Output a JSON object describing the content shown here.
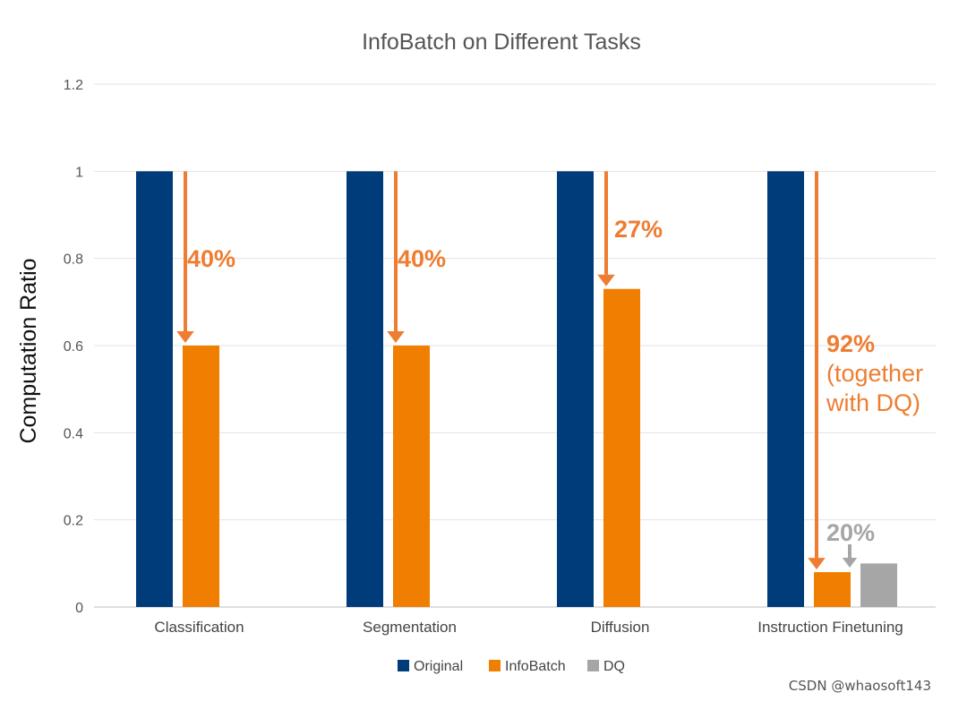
{
  "chart_data": {
    "type": "bar",
    "title": "InfoBatch on Different Tasks",
    "ylabel": "Computation Ratio",
    "xlabel": "",
    "ylim": [
      0,
      1.2
    ],
    "yticks": [
      "0",
      "0.2",
      "0.4",
      "0.6",
      "0.8",
      "1",
      "1.2"
    ],
    "categories": [
      "Classification",
      "Segmentation",
      "Diffusion",
      "Instruction Finetuning"
    ],
    "series": [
      {
        "name": "Original",
        "color": "#003b7a",
        "values": [
          1,
          1,
          1,
          1
        ]
      },
      {
        "name": "InfoBatch",
        "color": "#f07e00",
        "values": [
          0.6,
          0.6,
          0.73,
          0.08
        ]
      },
      {
        "name": "DQ",
        "color": "#a6a6a6",
        "values": [
          null,
          null,
          null,
          0.1
        ]
      }
    ],
    "annotations": [
      {
        "category": "Classification",
        "lines": [
          "40%"
        ],
        "color": "#ee7d31"
      },
      {
        "category": "Segmentation",
        "lines": [
          "40%"
        ],
        "color": "#ee7d31"
      },
      {
        "category": "Diffusion",
        "lines": [
          "27%"
        ],
        "color": "#ee7d31"
      },
      {
        "category": "Instruction Finetuning",
        "lines": [
          "92%",
          "(together",
          "with DQ)"
        ],
        "color": "#ee7d31"
      },
      {
        "category": "Instruction Finetuning",
        "lines": [
          "20%"
        ],
        "color": "#a6a6a6"
      }
    ],
    "legend": "bottom",
    "grid": true
  },
  "watermark": "CSDN @whaosoft143"
}
